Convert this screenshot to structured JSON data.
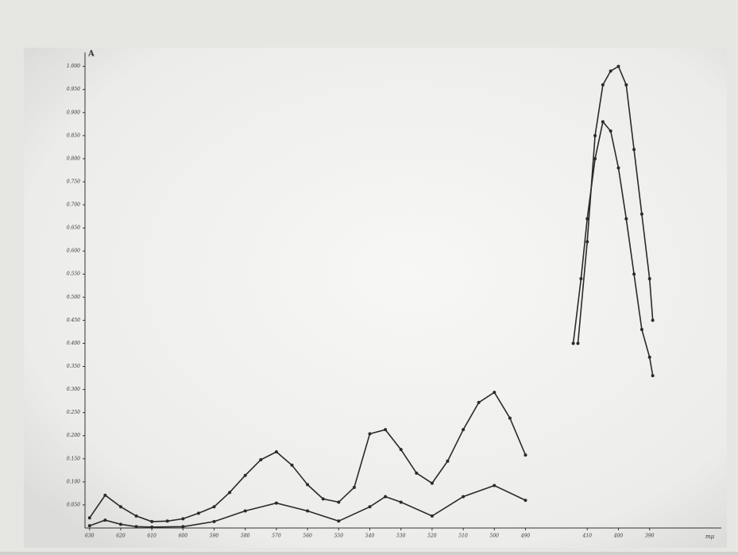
{
  "chart_data": {
    "type": "line",
    "y_label": "A",
    "x_unit": "mμ",
    "xlim": [
      [
        633,
        484
      ],
      [
        420,
        367
      ]
    ],
    "xticks": [
      630,
      620,
      610,
      600,
      590,
      580,
      570,
      560,
      550,
      540,
      530,
      520,
      510,
      500,
      490,
      410,
      400,
      390
    ],
    "ylim": [
      0,
      1.02
    ],
    "yticks": [
      {
        "value": 0.05,
        "label": "0.050"
      },
      {
        "value": 0.1,
        "label": "0.100"
      },
      {
        "value": 0.15,
        "label": "0.150"
      },
      {
        "value": 0.2,
        "label": "0.200"
      },
      {
        "value": 0.25,
        "label": "0.250"
      },
      {
        "value": 0.3,
        "label": "0.300"
      },
      {
        "value": 0.35,
        "label": "0.350"
      },
      {
        "value": 0.4,
        "label": "0.400"
      },
      {
        "value": 0.45,
        "label": "0.450"
      },
      {
        "value": 0.5,
        "label": "0.500"
      },
      {
        "value": 0.55,
        "label": "0.550"
      },
      {
        "value": 0.6,
        "label": "0.600"
      },
      {
        "value": 0.65,
        "label": "0.650"
      },
      {
        "value": 0.7,
        "label": "0.700"
      },
      {
        "value": 0.75,
        "label": "0.750"
      },
      {
        "value": 0.8,
        "label": "0.800"
      },
      {
        "value": 0.85,
        "label": "0.850"
      },
      {
        "value": 0.9,
        "label": "0.900"
      },
      {
        "value": 0.95,
        "label": "0.950"
      },
      {
        "value": 1,
        "label": "1.000"
      }
    ],
    "series": [
      {
        "color": "#2a2a2a",
        "x": [
          630,
          625,
          620,
          615,
          610,
          605,
          600,
          595,
          590,
          585,
          580,
          575,
          570,
          565,
          560,
          555,
          550,
          545,
          540,
          535,
          530,
          525,
          520,
          515,
          510,
          505,
          500,
          495,
          490,
          null,
          413,
          410,
          407.5,
          405,
          402.5,
          400,
          397.5,
          395,
          392.5,
          390,
          389
        ],
        "values": [
          0.022,
          0.071,
          0.046,
          0.026,
          0.014,
          0.015,
          0.02,
          0.032,
          0.046,
          0.077,
          0.114,
          0.148,
          0.165,
          0.136,
          0.094,
          0.063,
          0.056,
          0.088,
          0.204,
          0.213,
          0.17,
          0.119,
          0.097,
          0.145,
          0.213,
          0.272,
          0.294,
          0.238,
          0.158,
          null,
          0.4,
          0.62,
          0.85,
          0.96,
          0.99,
          1.0,
          0.96,
          0.82,
          0.68,
          0.54,
          0.45
        ]
      },
      {
        "color": "#2a2a2a",
        "x": [
          630,
          625,
          620,
          615,
          610,
          600,
          590,
          580,
          570,
          560,
          550,
          540,
          535,
          530,
          520,
          510,
          500,
          490,
          null,
          414.5,
          412,
          410,
          407.5,
          405,
          402.5,
          400,
          397.5,
          395,
          392.5,
          390,
          389
        ],
        "values": [
          0.005,
          0.017,
          0.008,
          0.003,
          0.002,
          0.003,
          0.014,
          0.037,
          0.054,
          0.037,
          0.015,
          0.046,
          0.068,
          0.056,
          0.026,
          0.068,
          0.092,
          0.06,
          null,
          0.4,
          0.54,
          0.67,
          0.8,
          0.88,
          0.86,
          0.78,
          0.67,
          0.55,
          0.43,
          0.37,
          0.33
        ]
      }
    ]
  }
}
